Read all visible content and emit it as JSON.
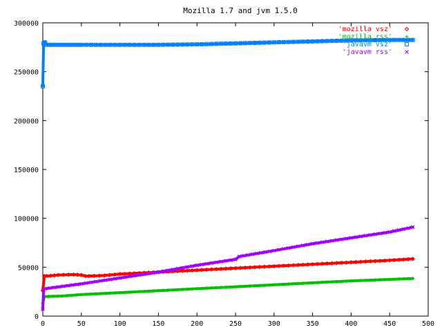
{
  "chart_data": {
    "type": "scatter",
    "title": "Mozilla 1.7 and jvm 1.5.0",
    "xlabel": "",
    "ylabel": "",
    "xlim": [
      0,
      500
    ],
    "ylim": [
      0,
      300000
    ],
    "xticks": [
      0,
      50,
      100,
      150,
      200,
      250,
      300,
      350,
      400,
      450,
      500
    ],
    "yticks": [
      0,
      50000,
      100000,
      150000,
      200000,
      250000,
      300000
    ],
    "grid": false,
    "legend_position": "top-right",
    "series": [
      {
        "name": "'mozilla vsz'",
        "color": "#ff0000",
        "marker": "diamond",
        "x": [
          0,
          2,
          5,
          20,
          40,
          50,
          55,
          60,
          80,
          100,
          150,
          200,
          250,
          300,
          350,
          400,
          450,
          480
        ],
        "y": [
          26000,
          41000,
          41000,
          42000,
          42500,
          42000,
          41000,
          41000,
          41500,
          43000,
          45000,
          47000,
          49000,
          51000,
          53000,
          55000,
          57000,
          58500
        ]
      },
      {
        "name": "'mozilla rss'",
        "color": "#00c000",
        "marker": "plus",
        "x": [
          0,
          2,
          25,
          50,
          100,
          150,
          200,
          250,
          300,
          350,
          400,
          450,
          480
        ],
        "y": [
          13000,
          20000,
          20500,
          22000,
          24000,
          26000,
          28000,
          30000,
          32000,
          34000,
          36000,
          37500,
          38500
        ]
      },
      {
        "name": "'javavm vsz'",
        "color": "#0080ff",
        "marker": "square",
        "x": [
          0,
          1,
          2,
          3,
          5,
          50,
          100,
          150,
          200,
          250,
          300,
          350,
          400,
          450,
          480
        ],
        "y": [
          235000,
          279000,
          280000,
          279500,
          277500,
          277500,
          277500,
          277500,
          278000,
          279000,
          280000,
          281000,
          282000,
          282500,
          282500
        ]
      },
      {
        "name": "'javavm rss'",
        "color": "#a000ff",
        "marker": "cross",
        "x": [
          0,
          1,
          3,
          50,
          100,
          150,
          200,
          250,
          255,
          300,
          350,
          400,
          450,
          480
        ],
        "y": [
          7000,
          27000,
          28000,
          33000,
          39000,
          45000,
          52000,
          58000,
          61000,
          67000,
          74000,
          80000,
          86000,
          91000
        ]
      }
    ]
  }
}
